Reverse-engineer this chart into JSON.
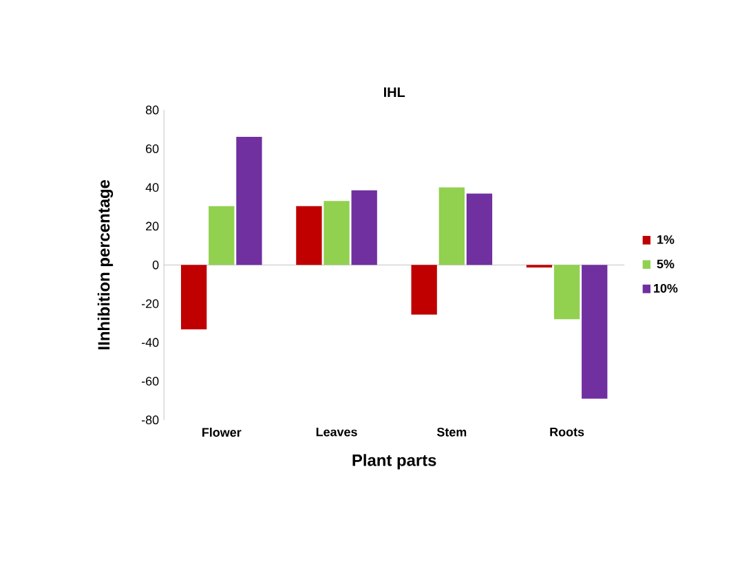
{
  "chart_data": {
    "type": "bar",
    "title": "IHL",
    "xlabel": "Plant parts",
    "ylabel": "IInhibition percentage",
    "categories": [
      "Flower",
      "Leaves",
      "Stem",
      "Roots"
    ],
    "series": [
      {
        "name": "1%",
        "color": "#c00000",
        "values": [
          -33.3,
          30.4,
          -25.6,
          -1.3
        ]
      },
      {
        "name": "5%",
        "color": "#92d050",
        "values": [
          30.4,
          33,
          40,
          -28
        ]
      },
      {
        "name": "10%",
        "color": "#7030a0",
        "values": [
          66.1,
          38.5,
          36.8,
          -69
        ]
      }
    ],
    "ylim": [
      -80,
      80
    ],
    "yticks": [
      -80,
      -60,
      -40,
      -20,
      0,
      20,
      40,
      60,
      80
    ],
    "legend": "right"
  }
}
